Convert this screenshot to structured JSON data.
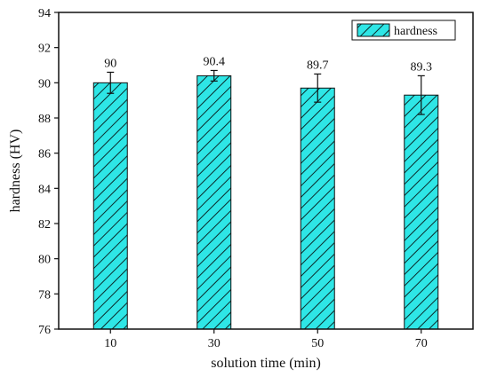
{
  "chart_data": {
    "type": "bar",
    "xlabel": "solution time (min)",
    "ylabel": "hardness (HV)",
    "categories": [
      "10",
      "30",
      "50",
      "70"
    ],
    "series": [
      {
        "name": "hardness",
        "values": [
          90,
          90.4,
          89.7,
          89.3
        ],
        "errors": [
          0.6,
          0.3,
          0.8,
          1.1
        ],
        "value_labels": [
          "90",
          "90.4",
          "89.7",
          "89.3"
        ]
      }
    ],
    "ylim": [
      76,
      94
    ],
    "yticks": [
      "76",
      "78",
      "80",
      "82",
      "84",
      "86",
      "88",
      "90",
      "92",
      "94"
    ],
    "legend": {
      "position": "top-right",
      "label": "hardness"
    },
    "grid": false,
    "colors": {
      "bar_fill": "#2ee6e6",
      "hatch": "#0a2a2a",
      "axis": "#111111"
    }
  }
}
